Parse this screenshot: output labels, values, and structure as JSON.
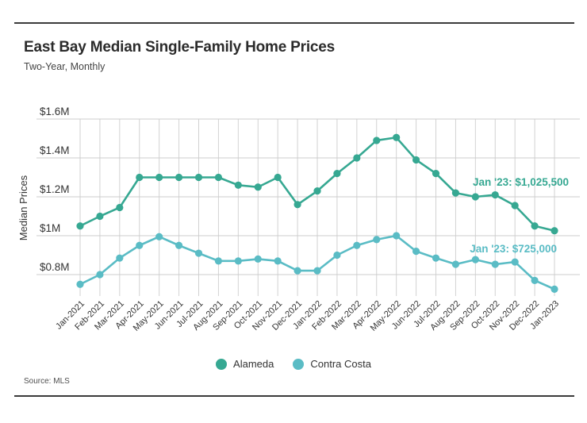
{
  "header": {
    "title": "East Bay Median Single-Family Home Prices",
    "subtitle": "Two-Year, Monthly"
  },
  "source": {
    "label": "Source: MLS"
  },
  "legend": [
    {
      "label": "Alameda",
      "color": "#36a892"
    },
    {
      "label": "Contra Costa",
      "color": "#5abcc5"
    }
  ],
  "chart_data": {
    "type": "line",
    "title": "East Bay Median Single-Family Home Prices",
    "subtitle": "Two-Year, Monthly",
    "xlabel": "",
    "ylabel": "Median Prices",
    "grid": true,
    "legend_position": "bottom",
    "ylim": [
      0.65,
      1.65
    ],
    "yticks": [
      {
        "label": "$1.6M",
        "value": 1.6
      },
      {
        "label": "$1.4M",
        "value": 1.4
      },
      {
        "label": "$1.2M",
        "value": 1.2
      },
      {
        "label": "$1M",
        "value": 1.0
      },
      {
        "label": "$0.8M",
        "value": 0.8
      }
    ],
    "x": [
      "Jan-2021",
      "Feb-2021",
      "Mar-2021",
      "Apr-2021",
      "May-2021",
      "Jun-2021",
      "Jul-2021",
      "Aug-2021",
      "Sep-2021",
      "Oct-2021",
      "Nov-2021",
      "Dec-2021",
      "Jan-2022",
      "Feb-2022",
      "Mar-2022",
      "Apr-2022",
      "May-2022",
      "Jun-2022",
      "Jul-2022",
      "Aug-2022",
      "Sep-2022",
      "Oct-2022",
      "Nov-2022",
      "Dec-2022",
      "Jan-2023"
    ],
    "series": [
      {
        "name": "Alameda",
        "color": "#36a892",
        "units": "millions USD",
        "values_musd": [
          1.05,
          1.1,
          1.145,
          1.3,
          1.3,
          1.3,
          1.3,
          1.3,
          1.26,
          1.25,
          1.3,
          1.16,
          1.23,
          1.32,
          1.4,
          1.49,
          1.505,
          1.39,
          1.32,
          1.22,
          1.2,
          1.21,
          1.155,
          1.05,
          1.0255
        ],
        "annotation": "Jan '23: $1,025,500"
      },
      {
        "name": "Contra Costa",
        "color": "#5abcc5",
        "units": "millions USD",
        "values_musd": [
          0.75,
          0.8,
          0.885,
          0.95,
          0.995,
          0.95,
          0.91,
          0.87,
          0.87,
          0.88,
          0.87,
          0.82,
          0.82,
          0.9,
          0.95,
          0.98,
          1.0,
          0.92,
          0.885,
          0.853,
          0.877,
          0.853,
          0.865,
          0.77,
          0.725
        ],
        "annotation": "Jan '23: $725,000"
      }
    ]
  }
}
